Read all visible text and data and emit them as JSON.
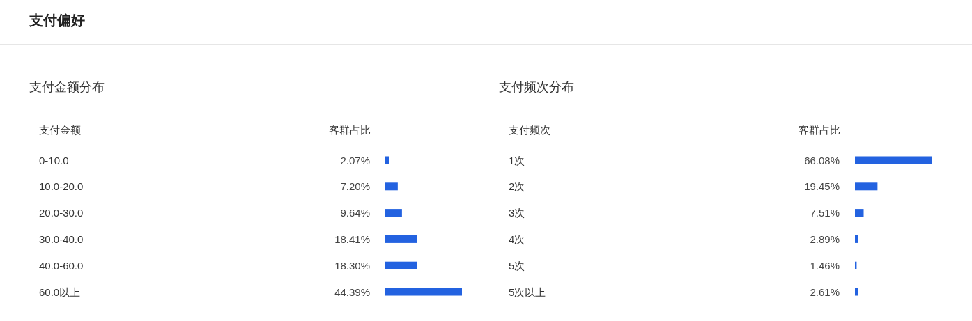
{
  "chart_data": [
    {
      "type": "other",
      "title": "支付偏好"
    },
    {
      "type": "bar",
      "orientation": "horizontal",
      "title": "支付金额分布",
      "ylabel": "支付金额",
      "xlabel": "客群占比",
      "categories": [
        "0-10.0",
        "10.0-20.0",
        "20.0-30.0",
        "30.0-40.0",
        "40.0-60.0",
        "60.0以上"
      ],
      "values": [
        2.07,
        7.2,
        9.64,
        18.41,
        18.3,
        44.39
      ],
      "value_labels": [
        "2.07%",
        "7.20%",
        "9.64%",
        "18.41%",
        "18.30%",
        "44.39%"
      ],
      "color": "#2362e0"
    },
    {
      "type": "bar",
      "orientation": "horizontal",
      "title": "支付频次分布",
      "ylabel": "支付频次",
      "xlabel": "客群占比",
      "categories": [
        "1次",
        "2次",
        "3次",
        "4次",
        "5次",
        "5次以上"
      ],
      "values": [
        66.08,
        19.45,
        7.51,
        2.89,
        1.46,
        2.61
      ],
      "value_labels": [
        "66.08%",
        "19.45%",
        "7.51%",
        "2.89%",
        "1.46%",
        "2.61%"
      ],
      "color": "#2362e0"
    }
  ]
}
